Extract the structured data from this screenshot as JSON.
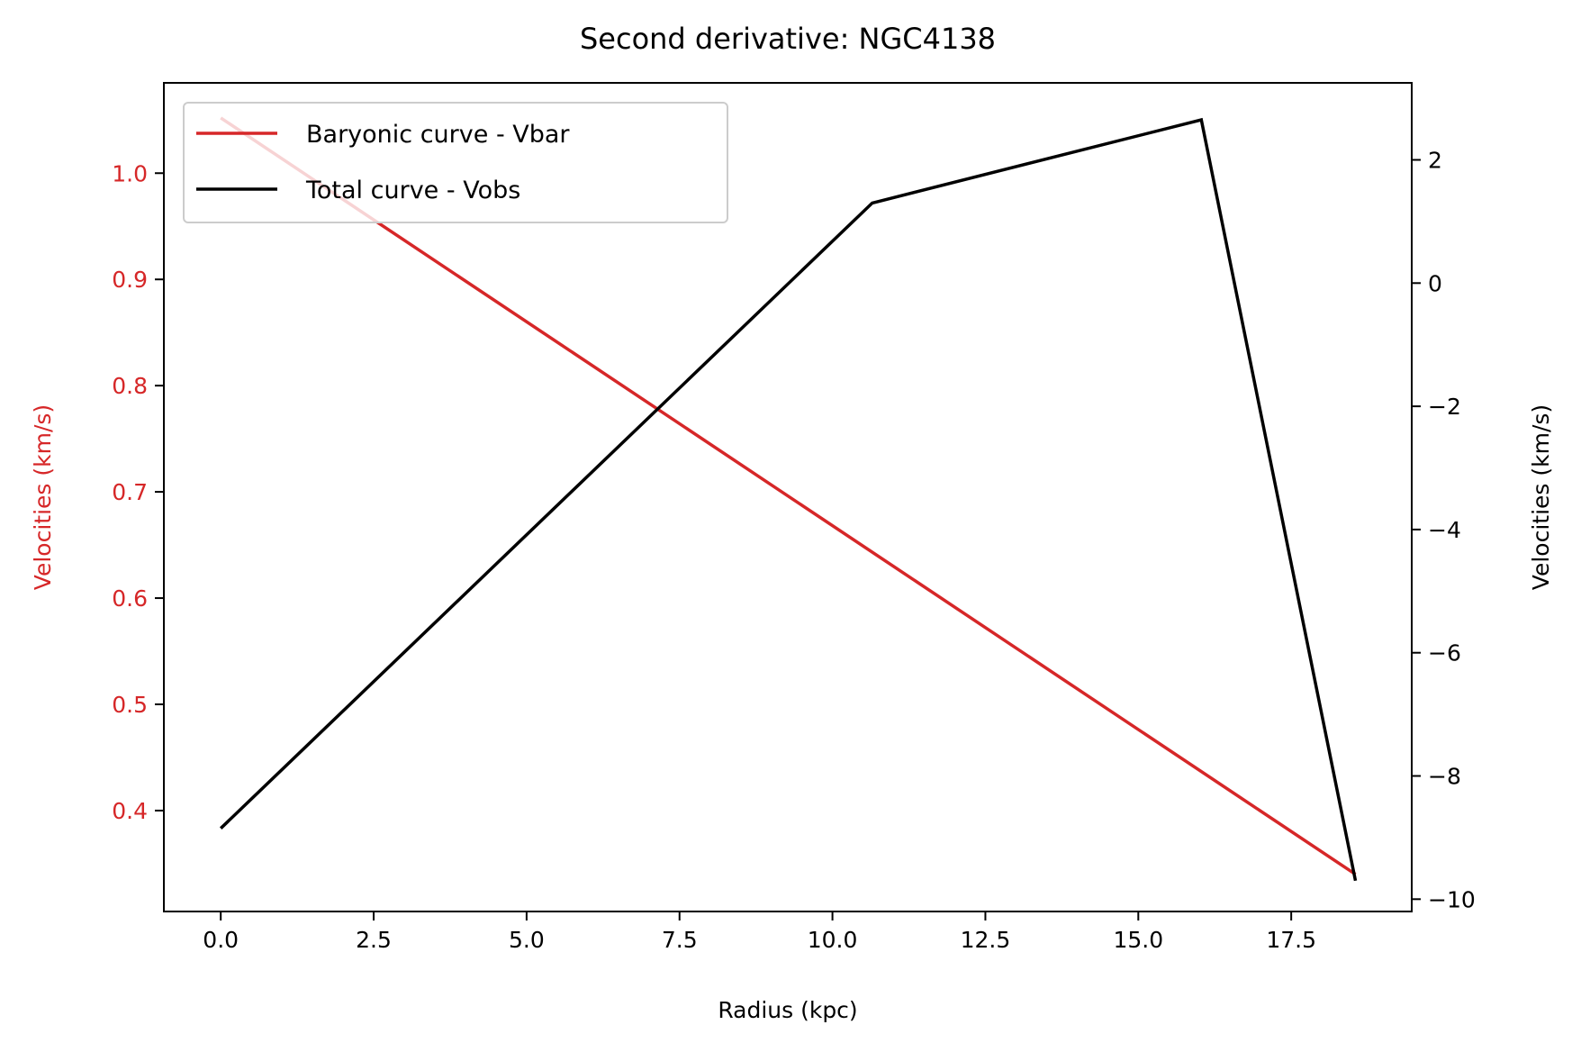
{
  "chart_data": {
    "type": "line",
    "title": "Second derivative: NGC4138",
    "xlabel": "Radius (kpc)",
    "ylabel_left": "Velocities (km/s)",
    "ylabel_right": "Velocities (km/s)",
    "xlim": [
      -0.93,
      19.47
    ],
    "ylim_left": [
      0.305,
      1.085
    ],
    "ylim_right": [
      -10.2,
      3.25
    ],
    "x_ticks": [
      0.0,
      2.5,
      5.0,
      7.5,
      10.0,
      12.5,
      15.0,
      17.5
    ],
    "x_tick_labels": [
      "0.0",
      "2.5",
      "5.0",
      "7.5",
      "10.0",
      "12.5",
      "15.0",
      "17.5"
    ],
    "y_left_ticks": [
      0.4,
      0.5,
      0.6,
      0.7,
      0.8,
      0.9,
      1.0
    ],
    "y_left_tick_labels": [
      "0.4",
      "0.5",
      "0.6",
      "0.7",
      "0.8",
      "0.9",
      "1.0"
    ],
    "y_right_ticks": [
      -10,
      -8,
      -6,
      -4,
      -2,
      0,
      2
    ],
    "y_right_tick_labels": [
      "−10",
      "−8",
      "−6",
      "−4",
      "−2",
      "0",
      "2"
    ],
    "grid": false,
    "legend_position": "upper-left",
    "series": [
      {
        "name": "Baryonic curve - Vbar",
        "axis": "left",
        "color": "#d62728",
        "x": [
          0.0,
          18.55
        ],
        "y": [
          1.052,
          0.34
        ]
      },
      {
        "name": "Total curve - Vobs",
        "axis": "right",
        "color": "#000000",
        "x": [
          0.0,
          10.65,
          16.03,
          18.55
        ],
        "y": [
          -8.85,
          1.3,
          2.65,
          -9.7
        ]
      }
    ],
    "left_axis_color": "#d62728",
    "right_axis_color": "#000000"
  }
}
